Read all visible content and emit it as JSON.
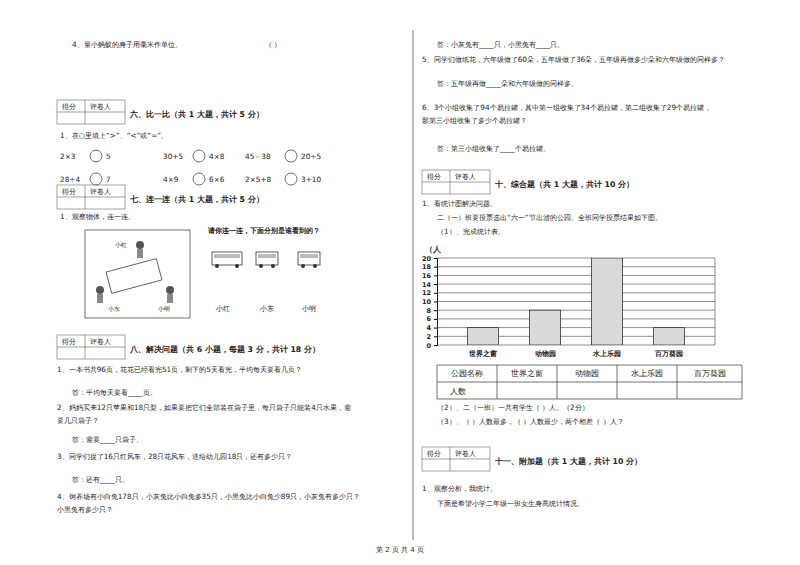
{
  "page": {
    "score_box": {
      "score": "得分",
      "grader": "评卷人"
    },
    "item4": {
      "text": "4、量小蚂蚁的身子用毫米作单位。",
      "paren": "（    ）"
    },
    "sec6": {
      "heading": "六、比一比（共 1 大题，共计 5 分）",
      "question": "1、在○里填上“>”、“<”或“=”。",
      "rows": [
        [
          [
            "2×3",
            "5"
          ],
          [
            "30+5",
            "4×8"
          ],
          [
            "45－38",
            "20÷5"
          ]
        ],
        [
          [
            "28÷4",
            "7"
          ],
          [
            "4×9",
            "6×6"
          ],
          [
            "2×5+8",
            "3+10"
          ]
        ]
      ]
    },
    "sec7": {
      "heading": "七、连一连（共 1 大题，共计 5 分）",
      "question": "1、观察物体，连一连。",
      "prompt": "请你连一连，下面分别是谁看到的？",
      "scene_labels": [
        "小红",
        "小东",
        "小明"
      ],
      "names": [
        "小红",
        "小东",
        "小明"
      ]
    },
    "sec8": {
      "heading": "八、解决问题（共 6 小题，每题 3 分，共计 18 分）",
      "lines": [
        "1、一本书共96页，花花已经看完51页，剩下的5天看完，平均每天要看几页？",
        "答：平均每天要看____页。",
        "2、妈妈买来12只苹果和18只梨，如果要把它们全部装在袋子里，每只袋子只能装4只水果，需",
        "要几只袋子？",
        "答：需要____只袋子。",
        "3、同学们捉了16只红风车，28只花风车，送给幼儿园18只，还有多少只？",
        "答：还有____只。",
        "4、饲养场有小白兔178只，小灰兔比小白兔多35只，小黑兔比小白兔少89只，小灰兔有多少只？",
        "小黑兔有多少只？"
      ],
      "right_lines": [
        "答：小灰兔有____只，小黑兔有____只。",
        "5、同学们做纸花，六年级做了60朵，五年级做了36朵，五年级再做多少朵和六年级做的同样多？",
        "答：五年级再做____朵和六年级做的同样多。",
        "6、3个小组收集了94个易拉罐，其中第一组收集了34个易拉罐，第二组收集了29个易拉罐，",
        "那第三小组收集了多少个易拉罐？",
        "答：第三小组收集了____个易拉罐。"
      ]
    },
    "sec10": {
      "heading": "十、综合题（共 1 大题，共计 10 分）",
      "lines": [
        "1、看统计图解决问题。",
        "二（一）班要投票选出“六一”节出游的公园。全班同学投票结果如下图。",
        "（1）、完成统计表。"
      ],
      "table": {
        "header": [
          "公园名称",
          "世界之窗",
          "动物园",
          "水上乐园",
          "百万葵园"
        ],
        "row_label": "人数"
      },
      "after": [
        "（2）、二（一班）一共有学生（      ）人。（2分）",
        "（3）、（      ）人数最多，（      ）人数最少，两个相差（      ）人？"
      ]
    },
    "sec11": {
      "heading": "十一、附加题（共 1 大题，共计 10 分）",
      "lines": [
        "1、观察分析，我统计。",
        "下面是希望小学二年级一班女生身高统计情况。"
      ]
    },
    "footer": "第 2 页 共 4 页"
  },
  "chart_data": {
    "type": "bar",
    "y_label": "（人",
    "categories": [
      "世界之窗",
      "动物园",
      "水上乐园",
      "百万葵园"
    ],
    "values": [
      4,
      8,
      20,
      4
    ],
    "color": "#d9d9d9",
    "ylim": [
      0,
      20
    ],
    "yticks": [
      0,
      2,
      4,
      6,
      8,
      10,
      12,
      14,
      16,
      18,
      20
    ],
    "grid": true
  }
}
